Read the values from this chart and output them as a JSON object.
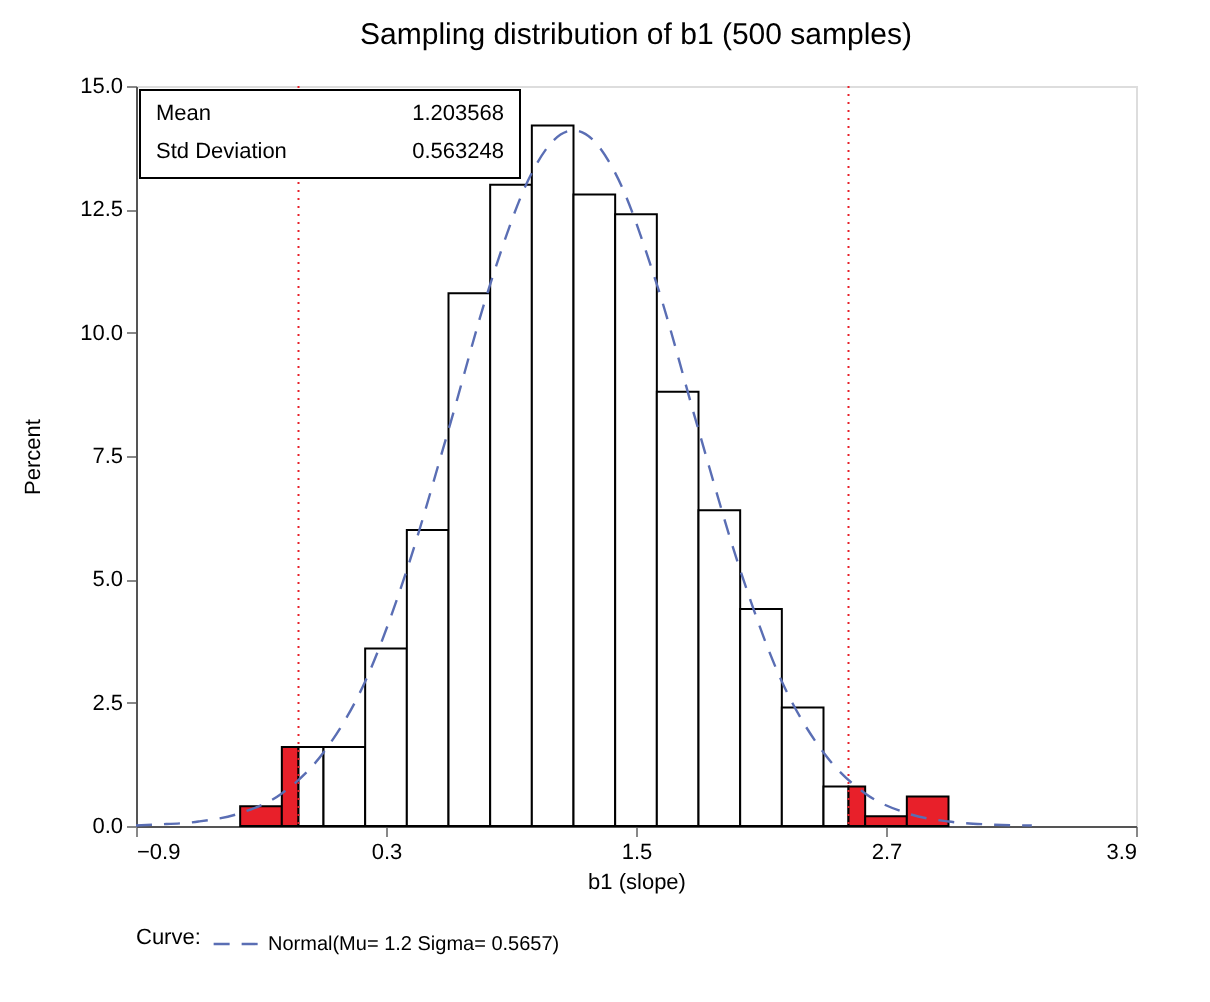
{
  "chart_data": {
    "type": "histogram",
    "title": "Sampling distribution of b1 (500 samples)",
    "xlabel": "b1 (slope)",
    "ylabel": "Percent",
    "legend_title": "Curve:",
    "legend": "bottom",
    "bins": [
      -0.4,
      -0.2,
      -0.12,
      0.0,
      0.2,
      0.4,
      0.6,
      0.8,
      1.0,
      1.2,
      1.4,
      1.6,
      1.8,
      2.0,
      2.2,
      2.4,
      2.52,
      2.6,
      2.8,
      3.0
    ],
    "values": [
      0.4,
      1.6,
      1.6,
      1.6,
      3.6,
      6.0,
      10.8,
      13.0,
      14.2,
      12.8,
      12.4,
      8.8,
      6.4,
      4.4,
      2.4,
      0.8,
      0.8,
      0.2,
      0.6
    ],
    "colors": [
      "#e8202a",
      "#e8202a",
      "#ffffff",
      "#ffffff",
      "#ffffff",
      "#ffffff",
      "#ffffff",
      "#ffffff",
      "#ffffff",
      "#ffffff",
      "#ffffff",
      "#ffffff",
      "#ffffff",
      "#ffffff",
      "#ffffff",
      "#ffffff",
      "#e8202a",
      "#e8202a",
      "#e8202a"
    ],
    "series": [
      {
        "type": "line",
        "name": "Normal(Mu= 1.2 Sigma= 0.5657)",
        "color": "#5a6eb4",
        "line_style": "dashed",
        "x": [
          -0.9,
          -0.8,
          -0.6,
          -0.4,
          -0.2,
          0.0,
          0.2,
          0.4,
          0.6,
          0.8,
          1.0,
          1.1,
          1.2,
          1.3,
          1.4,
          1.6,
          1.8,
          2.0,
          2.2,
          2.4,
          2.6,
          2.8,
          3.0,
          3.2,
          3.4
        ],
        "values": [
          0.01,
          0.03,
          0.09,
          0.26,
          0.66,
          1.49,
          2.93,
          5.19,
          8.03,
          10.98,
          13.24,
          13.88,
          14.1,
          13.88,
          13.24,
          10.98,
          8.03,
          5.19,
          2.93,
          1.49,
          0.66,
          0.26,
          0.09,
          0.03,
          0.01
        ]
      }
    ],
    "ref_lines": [
      {
        "axis": "x",
        "value": -0.12,
        "color": "#e8202a",
        "line_style": "dotted"
      },
      {
        "axis": "x",
        "value": 2.52,
        "color": "#e8202a",
        "line_style": "dotted"
      }
    ],
    "annotations": [
      "Mean",
      "1.203568",
      "Std Deviation",
      "0.563248"
    ],
    "xlim": [
      -0.9,
      3.9
    ],
    "xticks": [
      -0.9,
      0.3,
      1.5,
      2.7,
      3.9
    ],
    "ylim": [
      0,
      15
    ],
    "yticks": [
      {
        "value": 0,
        "label": "0.0"
      },
      2.5,
      {
        "value": 5,
        "label": "5.0"
      },
      7.5,
      {
        "value": 10,
        "label": "10.0"
      },
      12.5,
      {
        "value": 15,
        "label": "15.0"
      }
    ],
    "grid": false
  }
}
